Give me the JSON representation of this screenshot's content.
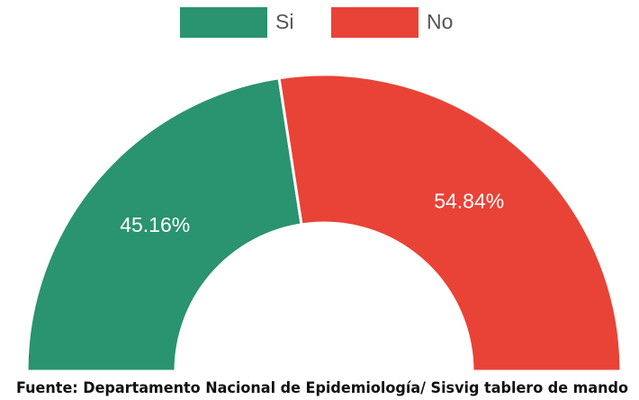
{
  "chart_data": {
    "type": "donut",
    "half": true,
    "categories": [
      "Si",
      "No"
    ],
    "values": [
      45.16,
      54.84
    ],
    "value_labels": [
      "45.16%",
      "54.84%"
    ],
    "colors": [
      "#2a9370",
      "#e84336"
    ],
    "legend": "top",
    "source": "Fuente: Departamento Nacional de Epidemiología/ Sisvig tablero de mando"
  }
}
